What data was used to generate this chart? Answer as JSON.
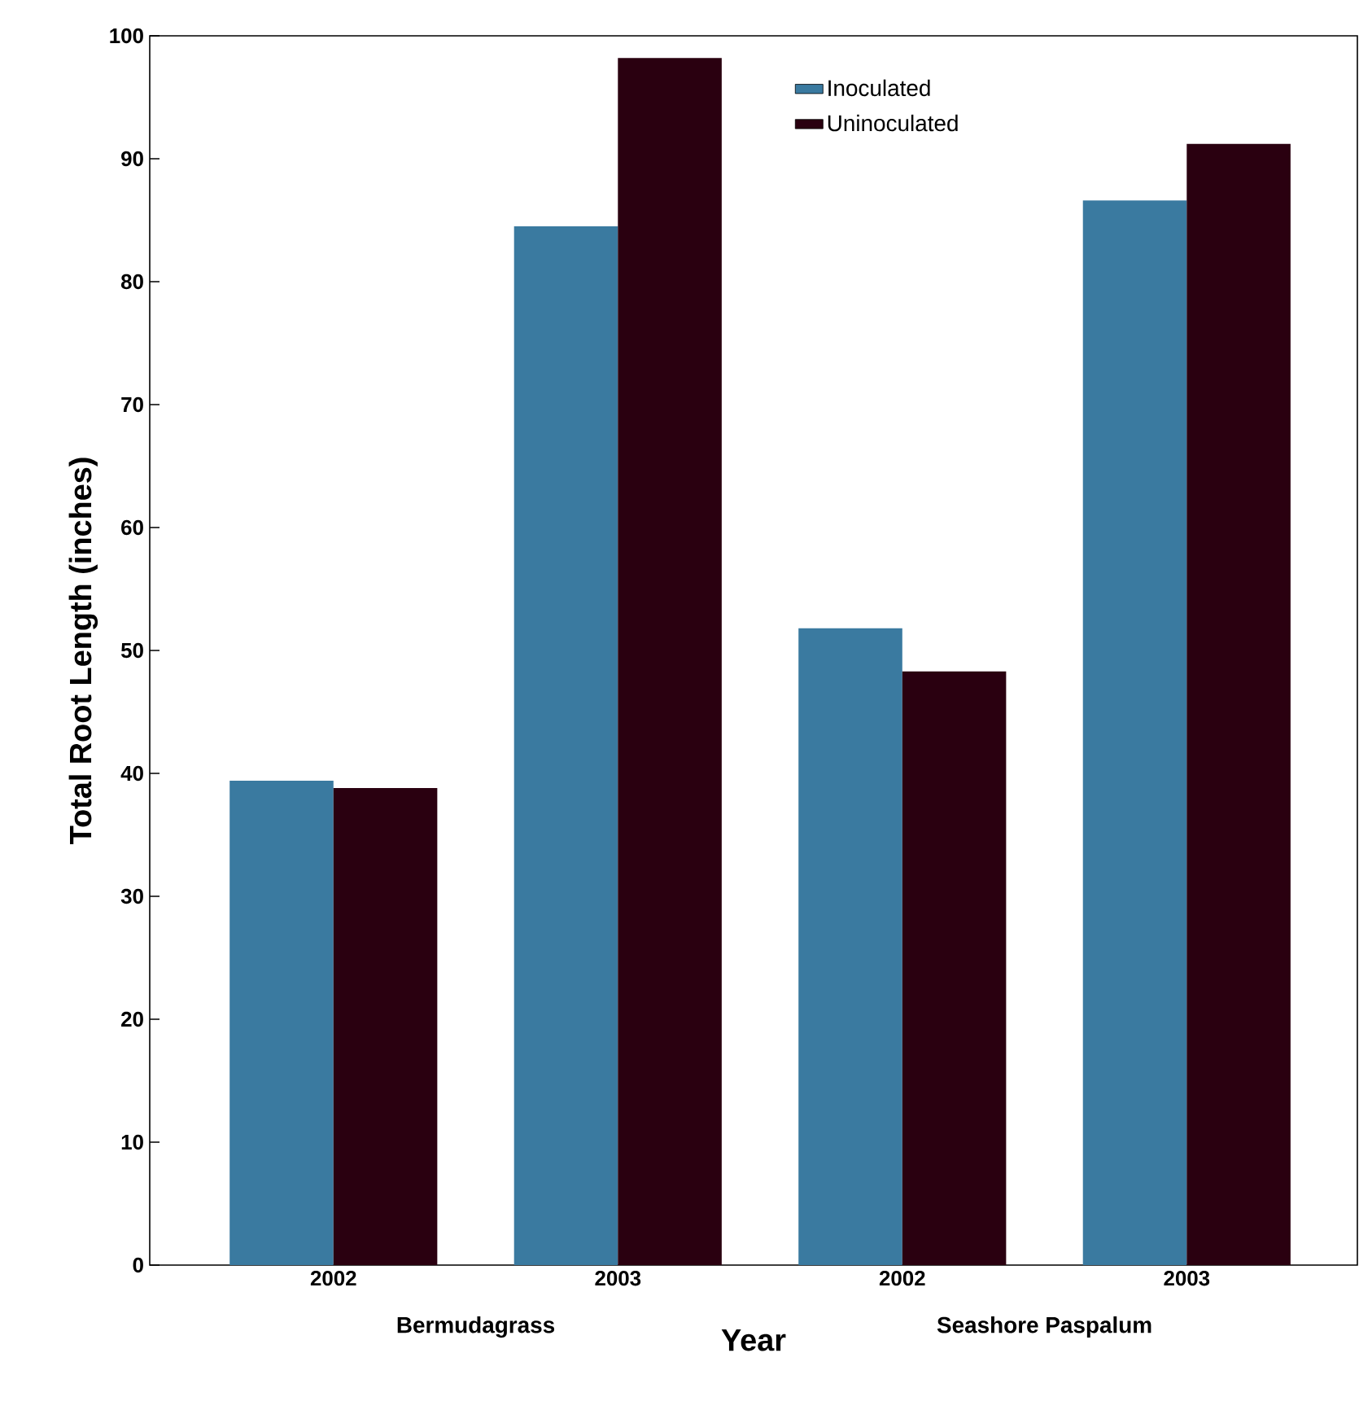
{
  "chart_data": {
    "type": "bar",
    "xlabel": "Year",
    "ylabel": "Total Root Length (inches)",
    "categories": [
      "2002",
      "2003",
      "2002",
      "2003"
    ],
    "annotations": [
      "Bermudagrass",
      "Seashore Paspalum"
    ],
    "series": [
      {
        "name": "Inoculated",
        "color": "#3a7aa0",
        "values": [
          39.4,
          84.5,
          51.8,
          86.6
        ]
      },
      {
        "name": "Uninoculated",
        "color": "#2a0010",
        "values": [
          38.8,
          98.2,
          48.3,
          91.2
        ]
      }
    ],
    "ylim": [
      0,
      100
    ],
    "yticks": [
      0,
      10,
      20,
      30,
      40,
      50,
      60,
      70,
      80,
      90,
      100
    ],
    "legend": "top",
    "grid": false
  }
}
